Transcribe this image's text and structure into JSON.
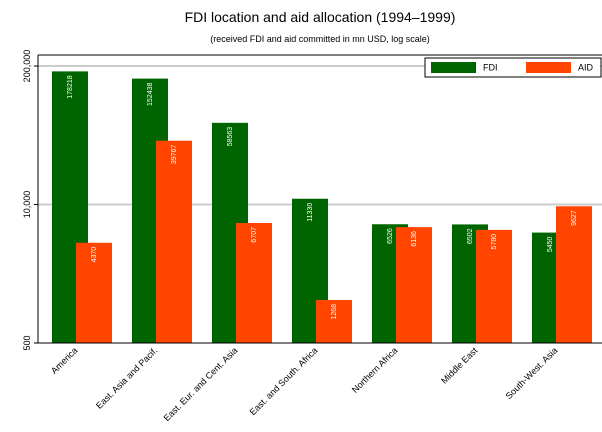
{
  "chart_data": {
    "type": "bar",
    "title": "FDI location and aid allocation (1994–1999)",
    "subtitle": "(received FDI and aid committed in mn USD, log scale)",
    "categories": [
      "America",
      "East. Asia and Pacif.",
      "East. Eur. and Cent. Asia",
      "East. and South. Africa",
      "Northern Africa",
      "Middle East",
      "South-West. Asia"
    ],
    "series": [
      {
        "name": "FDI",
        "color": "#006400",
        "values": [
          178218,
          152438,
          58563,
          11330,
          6526,
          6502,
          5450
        ]
      },
      {
        "name": "AID",
        "color": "#ff4500",
        "values": [
          4370,
          39767,
          6707,
          1268,
          6136,
          5780,
          9627
        ]
      }
    ],
    "ylim": [
      500,
      254000
    ],
    "yticks": [
      500,
      {
        "value": 10000,
        "label": "10,000"
      },
      {
        "value": 200000,
        "label": "200,000"
      }
    ],
    "log_scale": true,
    "grid": true,
    "legend": "top-right"
  }
}
